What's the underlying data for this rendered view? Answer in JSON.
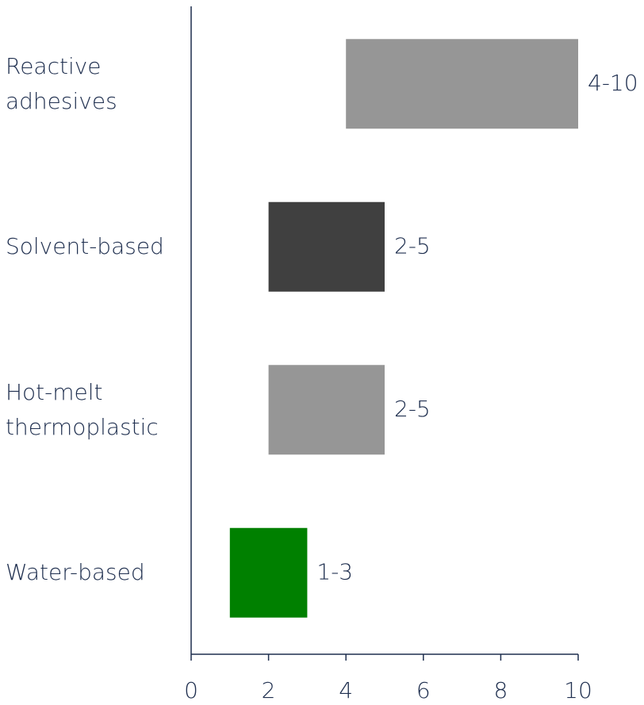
{
  "chart_data": {
    "type": "range-bar",
    "categories": [
      "Reactive adhesives",
      "Solvent-based",
      "Hot-melt thermoplastic",
      "Water-based"
    ],
    "starts": [
      4,
      2,
      2,
      1
    ],
    "ends": [
      10,
      5,
      5,
      3
    ],
    "value_labels": [
      "4-10",
      "2-5",
      "2-5",
      "1-3"
    ],
    "colors": [
      "#969696",
      "#404040",
      "#969696",
      "#008000"
    ],
    "xlim": [
      0,
      10
    ],
    "xticks": [
      0,
      2,
      4,
      6,
      8,
      10
    ]
  }
}
